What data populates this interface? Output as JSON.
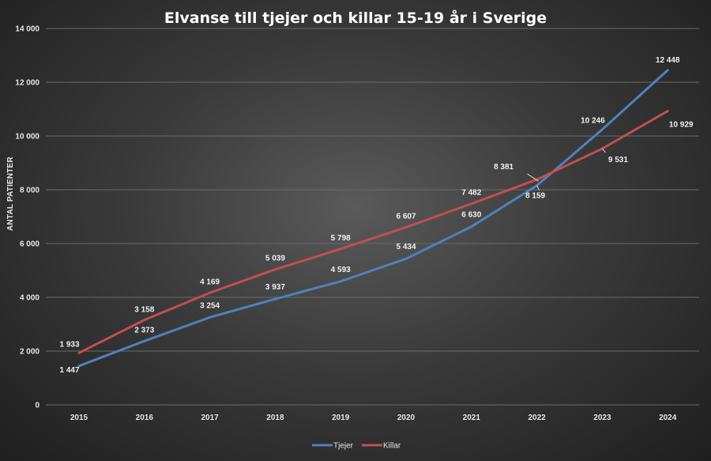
{
  "chart_data": {
    "type": "line",
    "title": "Elvanse till tjejer och killar 15-19 år i Sverige",
    "xlabel": "",
    "ylabel": "ANTAL PATIENTER",
    "categories": [
      "2015",
      "2016",
      "2017",
      "2018",
      "2019",
      "2020",
      "2021",
      "2022",
      "2023",
      "2024"
    ],
    "ylim": [
      0,
      14000
    ],
    "yticks": [
      0,
      2000,
      4000,
      6000,
      8000,
      10000,
      12000,
      14000
    ],
    "ytick_labels": [
      "0",
      "2 000",
      "4 000",
      "6 000",
      "8 000",
      "10 000",
      "12 000",
      "14 000"
    ],
    "grid": true,
    "legend": "bottom",
    "series": [
      {
        "name": "Tjejer",
        "color": "#4f81bd",
        "values": [
          1447,
          2373,
          3254,
          3937,
          4593,
          5434,
          6630,
          8159,
          10246,
          12448
        ],
        "labels": [
          "1 447",
          "2 373",
          "3 254",
          "3 937",
          "4 593",
          "5 434",
          "6 630",
          "8 159",
          "10 246",
          "12 448"
        ]
      },
      {
        "name": "Killar",
        "color": "#c0504d",
        "values": [
          1933,
          3158,
          4169,
          5039,
          5798,
          6607,
          7482,
          8381,
          9531,
          10929
        ],
        "labels": [
          "1 933",
          "3 158",
          "4 169",
          "5 039",
          "5 798",
          "6 607",
          "7 482",
          "8 381",
          "9 531",
          "10 929"
        ]
      }
    ]
  }
}
